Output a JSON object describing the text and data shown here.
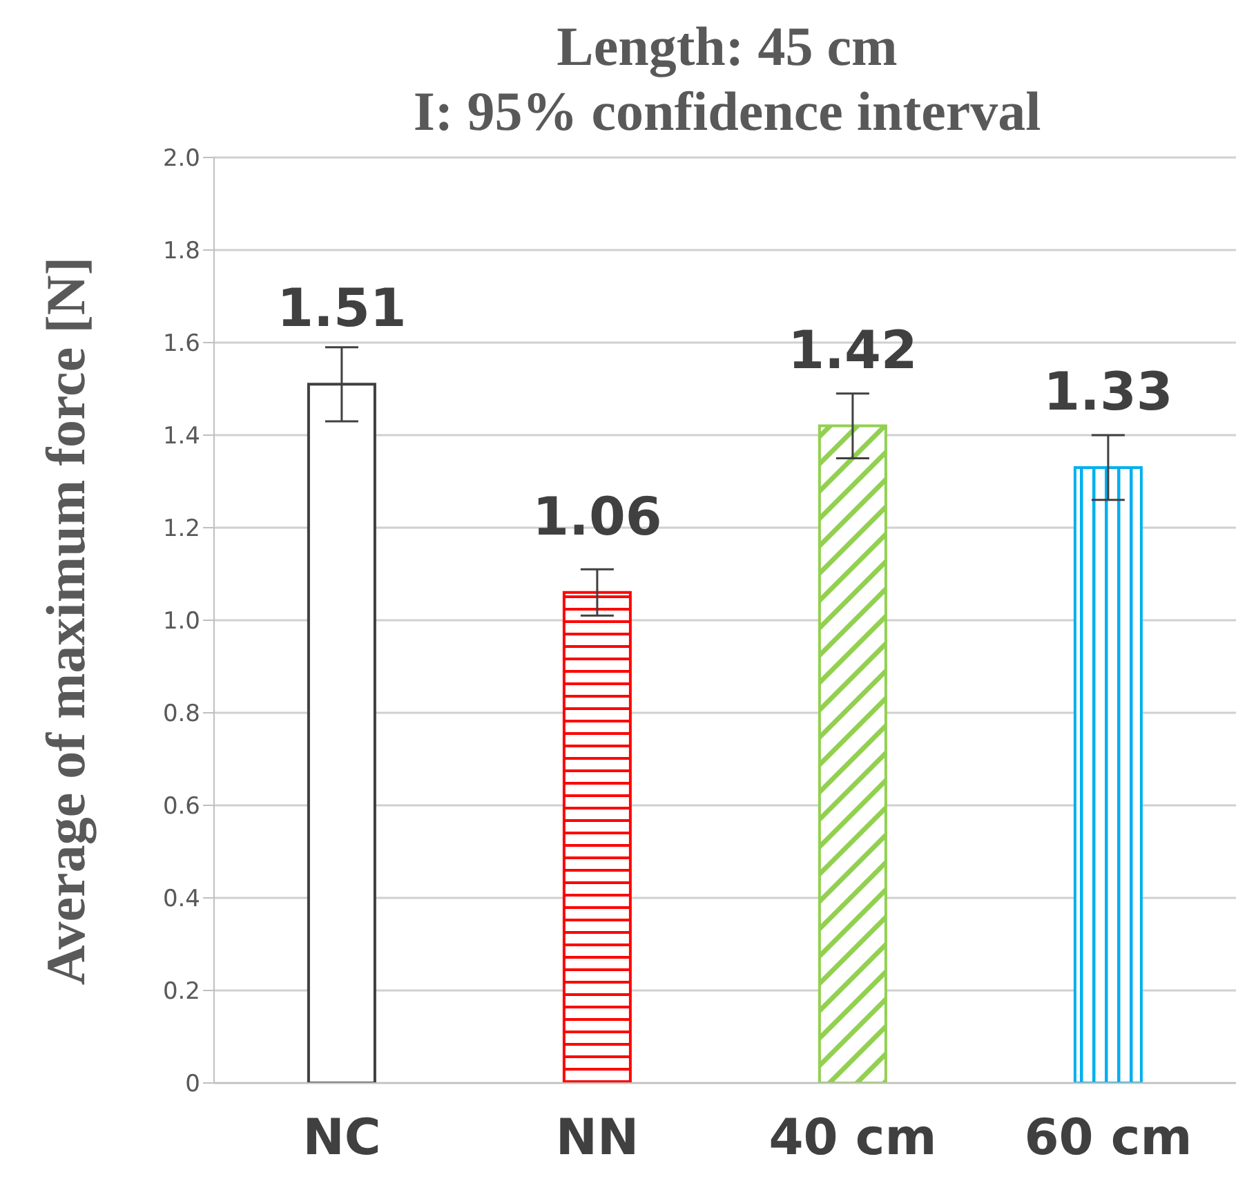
{
  "chart_data": {
    "type": "bar",
    "title": "Length: 45 cm\nI: 95% confidence interval",
    "ylabel": "Average of maximum force [N]",
    "categories": [
      "NC",
      "NN",
      "40 cm",
      "60 cm"
    ],
    "values": [
      1.51,
      1.06,
      1.42,
      1.33
    ],
    "errors": [
      0.08,
      0.05,
      0.07,
      0.07
    ],
    "colors": [
      "#404040",
      "#ff0000",
      "#92d050",
      "#00b0f0"
    ],
    "ylim": [
      0,
      2.0
    ],
    "yticks": [
      {
        "value": 0,
        "label": "0"
      },
      {
        "value": 0.2,
        "label": "0.2"
      },
      {
        "value": 0.4,
        "label": "0.4"
      },
      {
        "value": 0.6,
        "label": "0.6"
      },
      {
        "value": 0.8,
        "label": "0.8"
      },
      {
        "value": 1.0,
        "label": "1.0"
      },
      {
        "value": 1.2,
        "label": "1.2"
      },
      {
        "value": 1.4,
        "label": "1.4"
      },
      {
        "value": 1.6,
        "label": "1.6"
      },
      {
        "value": 1.8,
        "label": "1.8"
      },
      {
        "value": 2.0,
        "label": "2.0"
      }
    ],
    "grid": "y",
    "data_labels": true,
    "legend": false
  }
}
